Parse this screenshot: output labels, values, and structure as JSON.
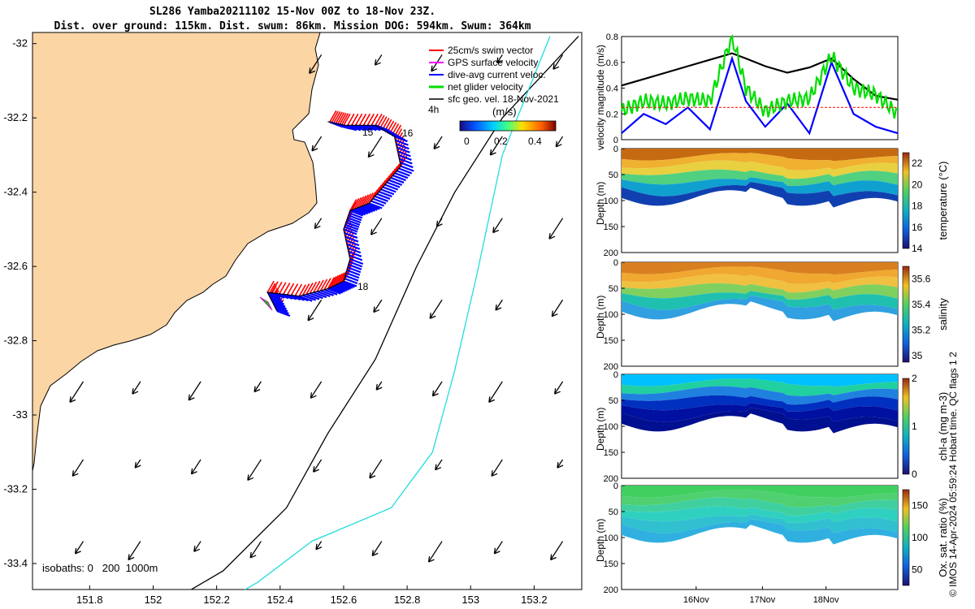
{
  "header": {
    "title_line1": "SL286 Yamba20211102 15-Nov 00Z to 18-Nov 23Z.",
    "title_line2": "Dist. over ground: 115km. Dist. swum: 86km. Mission DOG: 594km. Swum: 364km"
  },
  "credit": "© IMOS 14-Apr-2024 05:59:24 Hobart time. QC flags 1  2",
  "colors": {
    "land": "#fcd5a5",
    "swim": "#ff0000",
    "gps": "#ff00ff",
    "dive": "#0000ff",
    "net": "#00dd00",
    "isobath_200": "#000000",
    "isobath_1000": "#22dddd",
    "temperature": "#f0a830",
    "salinity": "#e0a030",
    "chl": "#00a0ff",
    "oxygen": "#30d0a0"
  },
  "chart_data": [
    {
      "type": "scatter",
      "name": "map",
      "xlim": [
        151.62,
        153.35
      ],
      "ylim": [
        -33.47,
        -31.97
      ],
      "x_ticks": [
        151.8,
        152,
        152.2,
        152.4,
        152.6,
        152.8,
        153,
        153.2
      ],
      "y_ticks": [
        -32,
        -32.2,
        -32.4,
        -32.6,
        -32.8,
        -33,
        -33.2,
        -33.4
      ],
      "x_tick_labels": [
        "151.8",
        "152",
        "152.2",
        "152.4",
        "152.6",
        "152.8",
        "153",
        "153.2"
      ],
      "y_tick_labels": [
        "-32",
        "-32.2",
        "-32.4",
        "-32.6",
        "-32.8",
        "-33",
        "-33.2",
        "-33.4"
      ],
      "legend": [
        "25cm/s swim vector",
        "GPS surface velocity",
        "dive-avg current veloc.",
        "net glider velocity",
        "sfc geo. vel. 18-Nov-2021"
      ],
      "legend_key": "4h",
      "colorbar": {
        "label": "(m/s)",
        "ticks": [
          "0",
          "0.2",
          "0.4"
        ]
      },
      "isobath_note": "isobaths: 0   200  1000m",
      "day_labels": [
        "15",
        "16",
        "18"
      ],
      "track": [
        [
          152.39,
          -32.72
        ],
        [
          152.36,
          -32.67
        ],
        [
          152.46,
          -32.68
        ],
        [
          152.55,
          -32.66
        ],
        [
          152.6,
          -32.64
        ],
        [
          152.62,
          -32.58
        ],
        [
          152.6,
          -32.5
        ],
        [
          152.62,
          -32.45
        ],
        [
          152.68,
          -32.43
        ],
        [
          152.73,
          -32.38
        ],
        [
          152.78,
          -32.33
        ],
        [
          152.76,
          -32.25
        ],
        [
          152.7,
          -32.22
        ],
        [
          152.6,
          -32.22
        ],
        [
          152.55,
          -32.21
        ]
      ],
      "vector_grid": {
        "lon": [
          151.78,
          151.96,
          152.15,
          152.34,
          152.53,
          152.72,
          152.91,
          153.1,
          153.29
        ],
        "lat": [
          -32.03,
          -32.25,
          -32.47,
          -32.69,
          -32.91,
          -33.12,
          -33.34
        ]
      },
      "isobath_200": [
        [
          153.34,
          -31.98
        ],
        [
          153.1,
          -32.2
        ],
        [
          152.95,
          -32.4
        ],
        [
          152.83,
          -32.6
        ],
        [
          152.7,
          -32.85
        ],
        [
          152.55,
          -33.05
        ],
        [
          152.42,
          -33.25
        ],
        [
          152.22,
          -33.42
        ],
        [
          152.1,
          -33.48
        ]
      ],
      "isobath_1000": [
        [
          153.25,
          -31.98
        ],
        [
          153.1,
          -32.3
        ],
        [
          153.02,
          -32.62
        ],
        [
          152.95,
          -32.88
        ],
        [
          152.88,
          -33.1
        ],
        [
          152.75,
          -33.25
        ],
        [
          152.5,
          -33.34
        ],
        [
          152.33,
          -33.45
        ],
        [
          152.25,
          -33.49
        ]
      ]
    },
    {
      "type": "line",
      "name": "velocity",
      "ylabel": "velocity magnitude (m/s)",
      "ylim": [
        0,
        0.8
      ],
      "y_ticks": [
        "0",
        "0.2",
        "0.4",
        "0.6",
        "0.8"
      ],
      "x": [
        0,
        0.08,
        0.16,
        0.24,
        0.32,
        0.4,
        0.45,
        0.52,
        0.6,
        0.68,
        0.76,
        0.84,
        0.92,
        1.0
      ],
      "series": [
        {
          "id": "black",
          "values": [
            0.42,
            0.47,
            0.52,
            0.57,
            0.62,
            0.67,
            0.63,
            0.57,
            0.52,
            0.56,
            0.63,
            0.47,
            0.34,
            0.31
          ]
        },
        {
          "id": "blue",
          "values": [
            0.05,
            0.2,
            0.12,
            0.25,
            0.08,
            0.63,
            0.3,
            0.1,
            0.28,
            0.05,
            0.6,
            0.2,
            0.1,
            0.05
          ]
        },
        {
          "id": "green",
          "values": [
            0.22,
            0.3,
            0.28,
            0.32,
            0.3,
            0.8,
            0.4,
            0.22,
            0.3,
            0.32,
            0.65,
            0.4,
            0.35,
            0.2
          ]
        },
        {
          "id": "red",
          "values": [
            0.25,
            0.25,
            0.25,
            0.25,
            0.25,
            0.25,
            0.25,
            0.25,
            0.25,
            0.25,
            0.25,
            0.25,
            0.25,
            0.25
          ]
        }
      ]
    },
    {
      "type": "heatmap",
      "name": "temperature",
      "ylabel": "Depth (m)",
      "ylim": [
        0,
        200
      ],
      "y_ticks": [
        "0",
        "50",
        "100",
        "150",
        "200"
      ],
      "colorbar_label": "temperature (°C)",
      "colorbar_ticks": [
        "14",
        "16",
        "18",
        "20",
        "22"
      ]
    },
    {
      "type": "heatmap",
      "name": "salinity",
      "ylabel": "Depth (m)",
      "ylim": [
        0,
        200
      ],
      "y_ticks": [
        "0",
        "50",
        "100",
        "150",
        "200"
      ],
      "colorbar_label": "salinity",
      "colorbar_ticks": [
        "35",
        "35.2",
        "35.4",
        "35.6"
      ]
    },
    {
      "type": "heatmap",
      "name": "chl",
      "ylabel": "Depth (m)",
      "ylim": [
        0,
        200
      ],
      "y_ticks": [
        "0",
        "50",
        "100",
        "150",
        "200"
      ],
      "colorbar_label": "chl-a (mg m-3)",
      "colorbar_ticks": [
        "0",
        "1",
        "2"
      ]
    },
    {
      "type": "heatmap",
      "name": "oxygen",
      "ylabel": "Depth (m)",
      "ylim": [
        0,
        200
      ],
      "y_ticks": [
        "0",
        "50",
        "100",
        "150",
        "200"
      ],
      "colorbar_label": "Ox. sat. ratio (%)",
      "colorbar_ticks": [
        "50",
        "100",
        "150"
      ],
      "x_tick_labels": [
        "16Nov",
        "17Nov",
        "18Nov"
      ]
    }
  ]
}
